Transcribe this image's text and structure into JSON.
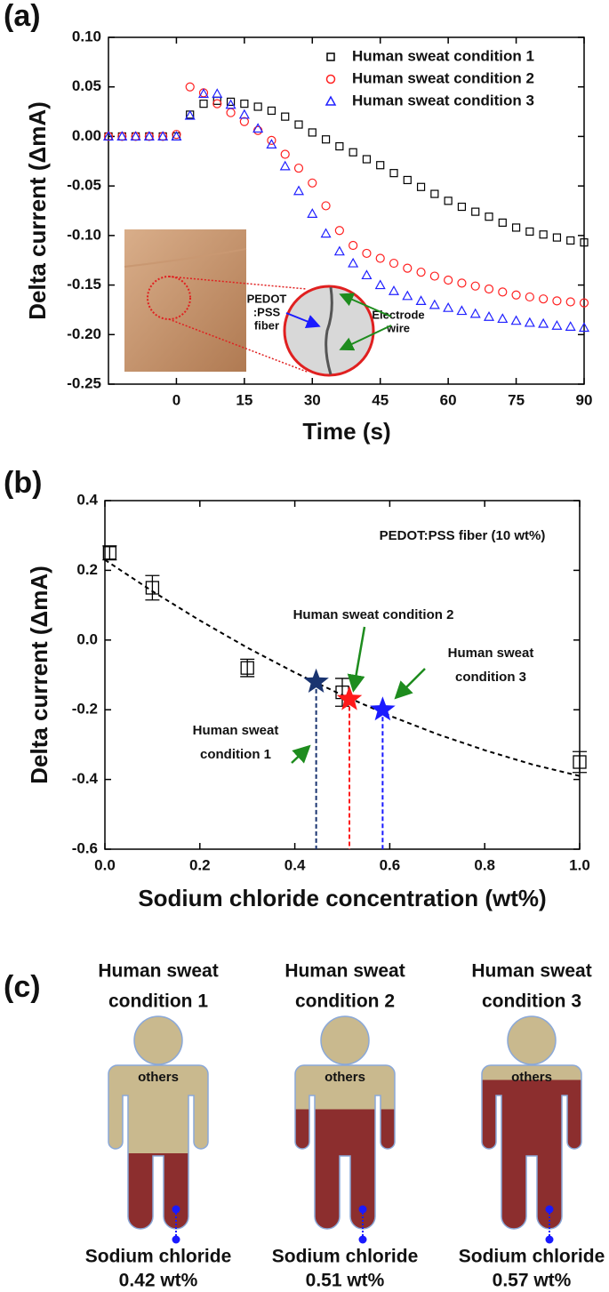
{
  "chart_data": [
    {
      "type": "scatter",
      "panel_label": "(a)",
      "xlabel": "Time (s)",
      "ylabel": "Delta current (ΔmA)",
      "xlim": [
        -15,
        90
      ],
      "xticks": [
        0,
        15,
        30,
        45,
        60,
        75,
        90
      ],
      "ylim": [
        -0.25,
        0.1
      ],
      "yticks": [
        -0.25,
        {
          "value": -0.2,
          "label": "-0.20"
        },
        -0.15,
        {
          "value": -0.1,
          "label": "-0.10"
        },
        -0.05,
        {
          "value": 0,
          "label": "0.00"
        },
        0.05,
        {
          "value": 0.1,
          "label": "0.10"
        }
      ],
      "legend": "upper right",
      "x": [
        -15,
        -12,
        -9,
        -6,
        -3,
        0,
        3,
        6,
        9,
        12,
        15,
        18,
        21,
        24,
        27,
        30,
        33,
        36,
        39,
        42,
        45,
        48,
        51,
        54,
        57,
        60,
        63,
        66,
        69,
        72,
        75,
        78,
        81,
        84,
        87,
        90
      ],
      "series": [
        {
          "name": "Human sweat condition 1",
          "color": "#000000",
          "marker": "square",
          "values": [
            0,
            0,
            0,
            0,
            0,
            0,
            0.022,
            0.033,
            0.036,
            0.035,
            0.033,
            0.03,
            0.026,
            0.02,
            0.012,
            0.004,
            -0.003,
            -0.01,
            -0.016,
            -0.023,
            -0.029,
            -0.037,
            -0.044,
            -0.051,
            -0.058,
            -0.065,
            -0.071,
            -0.076,
            -0.081,
            -0.087,
            -0.092,
            -0.096,
            -0.099,
            -0.102,
            -0.105,
            -0.107
          ]
        },
        {
          "name": "Human sweat condition 2",
          "color": "#ff2020",
          "marker": "circle",
          "values": [
            0,
            0,
            0,
            0,
            0,
            0.002,
            0.05,
            0.044,
            0.033,
            0.024,
            0.015,
            0.006,
            -0.004,
            -0.018,
            -0.032,
            -0.047,
            -0.07,
            -0.095,
            -0.11,
            -0.118,
            -0.123,
            -0.128,
            -0.133,
            -0.137,
            -0.141,
            -0.145,
            -0.148,
            -0.151,
            -0.154,
            -0.157,
            -0.16,
            -0.162,
            -0.164,
            -0.166,
            -0.167,
            -0.168
          ]
        },
        {
          "name": "Human sweat condition 3",
          "color": "#2020ff",
          "marker": "triangle",
          "values": [
            0,
            0,
            0,
            0,
            0,
            0,
            0.021,
            0.043,
            0.043,
            0.032,
            0.022,
            0.008,
            -0.008,
            -0.03,
            -0.055,
            -0.078,
            -0.098,
            -0.116,
            -0.128,
            -0.14,
            -0.15,
            -0.156,
            -0.161,
            -0.166,
            -0.17,
            -0.173,
            -0.176,
            -0.179,
            -0.182,
            -0.184,
            -0.186,
            -0.188,
            -0.189,
            -0.191,
            -0.192,
            -0.193
          ]
        }
      ],
      "inset_labels": [
        [
          "PEDOT",
          ":PSS",
          "fiber"
        ],
        [
          "Electrode",
          "wire"
        ]
      ]
    },
    {
      "type": "errorbar",
      "panel_label": "(b)",
      "xlabel": "Sodium chloride concentration (wt%)",
      "ylabel": "Delta current (ΔmA)",
      "xlim": [
        0,
        1
      ],
      "xticks": [
        {
          "value": 0,
          "label": "0.0"
        },
        0.2,
        0.4,
        0.6,
        0.8,
        {
          "value": 1,
          "label": "1.0"
        }
      ],
      "ylim": [
        -0.6,
        0.4
      ],
      "yticks": [
        -0.6,
        -0.4,
        -0.2,
        {
          "value": 0,
          "label": "0.0"
        },
        0.2,
        0.4
      ],
      "annotation": "PEDOT:PSS fiber (10 wt%)",
      "x": [
        0.01,
        0.1,
        0.3,
        0.5,
        1.0
      ],
      "values": [
        0.25,
        0.15,
        -0.08,
        -0.15,
        -0.35
      ],
      "errors": [
        0.02,
        0.035,
        0.025,
        0.04,
        0.03
      ],
      "fit": {
        "x": [
          0,
          0.1,
          0.2,
          0.3,
          0.4,
          0.5,
          0.6,
          0.7,
          0.8,
          0.9,
          1.0
        ],
        "values": [
          0.23,
          0.14,
          0.056,
          -0.022,
          -0.093,
          -0.158,
          -0.217,
          -0.27,
          -0.316,
          -0.357,
          -0.39
        ]
      },
      "stars": [
        {
          "label": [
            "Human sweat",
            "condition 1"
          ],
          "x": 0.445,
          "y": -0.12,
          "color": "#1a3470"
        },
        {
          "label": [
            "Human sweat condition 2"
          ],
          "x": 0.515,
          "y": -0.17,
          "color": "#ff1a1a"
        },
        {
          "label": [
            "Human sweat",
            "condition 3"
          ],
          "x": 0.585,
          "y": -0.2,
          "color": "#1a1aff"
        }
      ]
    }
  ],
  "diagram": {
    "panel_label": "(c)",
    "figures": [
      {
        "title": [
          "Human sweat",
          "condition 1"
        ],
        "label": "others",
        "caption": "Sodium chloride",
        "value": 0.42,
        "value_label": "0.42 wt%"
      },
      {
        "title": [
          "Human sweat",
          "condition 2"
        ],
        "label": "others",
        "caption": "Sodium chloride",
        "value": 0.51,
        "value_label": "0.51 wt%"
      },
      {
        "title": [
          "Human sweat",
          "condition 3"
        ],
        "label": "others",
        "caption": "Sodium chloride",
        "value": 0.57,
        "value_label": "0.57 wt%"
      }
    ]
  }
}
